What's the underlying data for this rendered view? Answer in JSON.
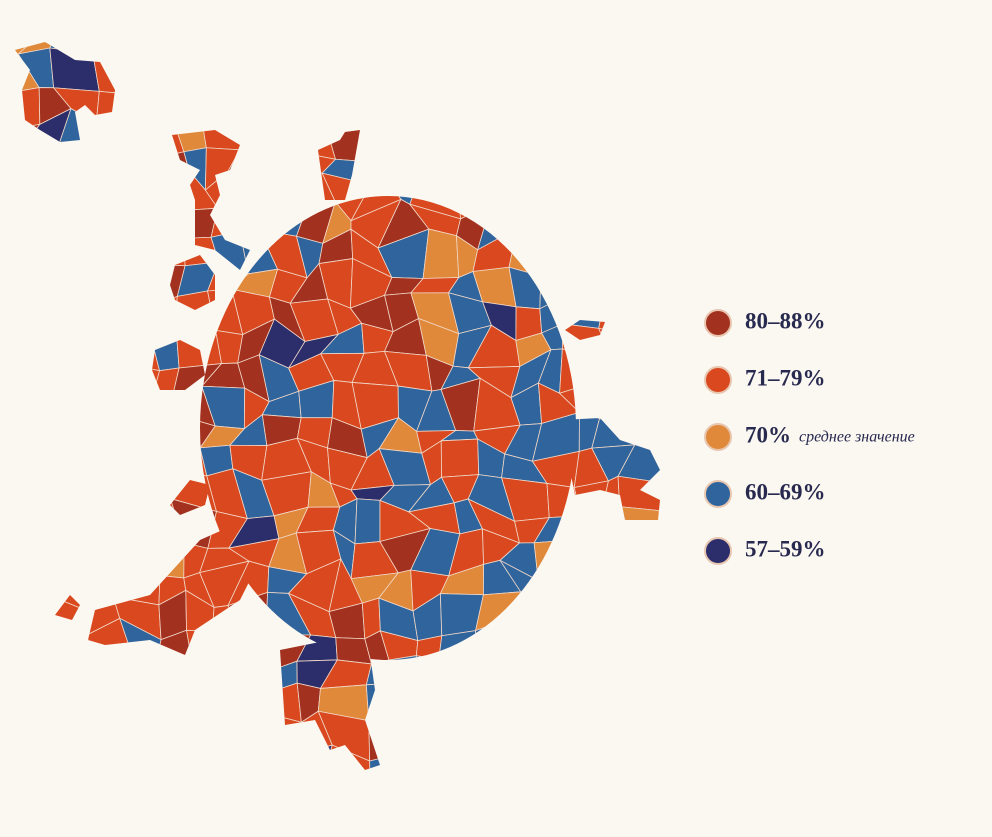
{
  "legend": [
    {
      "label": "80–88%",
      "color": "#a3311f"
    },
    {
      "label": "71–79%",
      "color": "#d9481e"
    },
    {
      "label": "70%",
      "note": "среднее значение",
      "color": "#e0893a"
    },
    {
      "label": "60–69%",
      "color": "#2f649c"
    },
    {
      "label": "57–59%",
      "color": "#2c2d6b"
    }
  ]
}
